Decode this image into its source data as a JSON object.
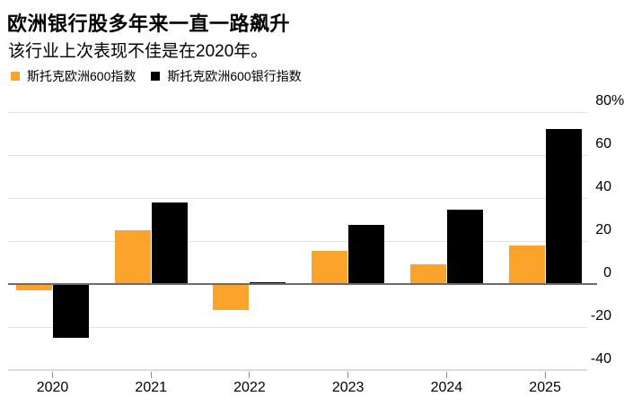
{
  "title": "欧洲银行股多年来一直一路飙升",
  "subtitle": "该行业上次表现不佳是在2020年。",
  "legend": {
    "items": [
      {
        "label": "斯托克欧洲600指数",
        "color": "#FCA32B"
      },
      {
        "label": "斯托克欧洲600银行指数",
        "color": "#000000"
      }
    ]
  },
  "chart_data": {
    "type": "bar",
    "title": "欧洲银行股多年来一直一路飙升",
    "subtitle": "该行业上次表现不佳是在2020年。",
    "categories": [
      "2020",
      "2021",
      "2022",
      "2023",
      "2024",
      "2025"
    ],
    "series": [
      {
        "name": "斯托克欧洲600指数",
        "color": "#FCA32B",
        "values": [
          -3,
          25,
          -12,
          15.5,
          9,
          18
        ]
      },
      {
        "name": "斯托克欧洲600银行指数",
        "color": "#000000",
        "values": [
          -25,
          38,
          1,
          27.5,
          34.5,
          72
        ]
      }
    ],
    "unit": "%",
    "ylim": [
      -40,
      80
    ],
    "y_ticks": [
      {
        "value": 80,
        "label": "80%"
      },
      {
        "value": 60,
        "label": "60"
      },
      {
        "value": 40,
        "label": "40"
      },
      {
        "value": 20,
        "label": "20"
      },
      {
        "value": 0,
        "label": "0"
      },
      {
        "value": -20,
        "label": "-20"
      },
      {
        "value": -40,
        "label": "-40"
      }
    ],
    "grid": true,
    "legend_position": "top-left",
    "baseline": 0
  }
}
